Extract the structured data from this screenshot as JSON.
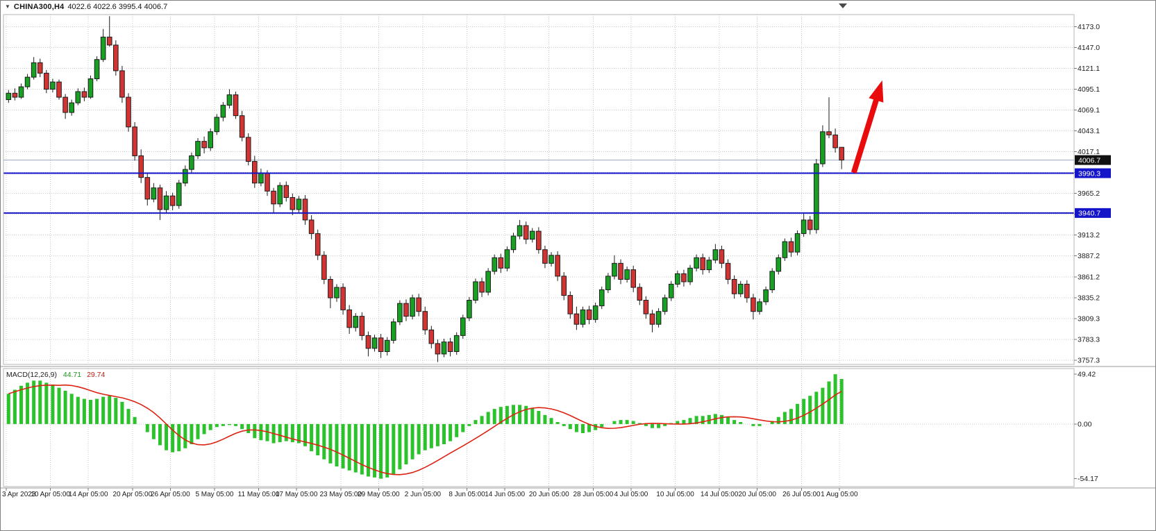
{
  "window": {
    "symbol_label": "CHINA300,H4",
    "ohlc_label": "4022.6 4022.6 3995.4 4006.7"
  },
  "colors": {
    "up": "#17a022",
    "down": "#d23434",
    "outline": "#1c1c1c",
    "grid": "#c9c9c9",
    "hline": "#1414c8",
    "bid_line": "#9aa7c7",
    "macd_hist": "#2cc22c",
    "macd_signal": "#dd2211",
    "arrow": "#e80c0c",
    "tag_current_bg": "#111111",
    "tag_hline_bg": "#1414c8",
    "axis_text": "#1a1a1a"
  },
  "chart_data": {
    "type": "candlestick",
    "symbol": "CHINA300",
    "timeframe": "H4",
    "title": "CHINA300,H4",
    "current_bar": {
      "open": 4022.6,
      "high": 4022.6,
      "low": 3995.4,
      "close": 4006.7
    },
    "current_price": {
      "value": 4006.7,
      "label": "4006.7"
    },
    "hlines": [
      {
        "value": 3990.3,
        "label": "3990.3"
      },
      {
        "value": 3940.7,
        "label": "3940.7"
      }
    ],
    "price_axis": {
      "tick_labels": [
        "4173.0",
        "4147.0",
        "4121.1",
        "4095.1",
        "4069.1",
        "4043.1",
        "4017.1",
        "3991.1",
        "3965.2",
        "3939.2",
        "3913.2",
        "3887.2",
        "3861.2",
        "3835.2",
        "3809.3",
        "3783.3",
        "3757.3"
      ]
    },
    "x_labels": [
      {
        "i": 0,
        "t": "3 Apr 2023"
      },
      {
        "i": 7,
        "t": "10 Apr 05:00"
      },
      {
        "i": 13,
        "t": "14 Apr 05:00"
      },
      {
        "i": 20,
        "t": "20 Apr 05:00"
      },
      {
        "i": 26,
        "t": "26 Apr 05:00"
      },
      {
        "i": 33,
        "t": "5 May 05:00"
      },
      {
        "i": 40,
        "t": "11 May 05:00"
      },
      {
        "i": 46,
        "t": "17 May 05:00"
      },
      {
        "i": 53,
        "t": "23 May 05:00"
      },
      {
        "i": 59,
        "t": "29 May 05:00"
      },
      {
        "i": 66,
        "t": "2 Jun 05:00"
      },
      {
        "i": 73,
        "t": "8 Jun 05:00"
      },
      {
        "i": 79,
        "t": "14 Jun 05:00"
      },
      {
        "i": 86,
        "t": "20 Jun 05:00"
      },
      {
        "i": 93,
        "t": "28 Jun 05:00"
      },
      {
        "i": 99,
        "t": "4 Jul 05:00"
      },
      {
        "i": 106,
        "t": "10 Jul 05:00"
      },
      {
        "i": 113,
        "t": "14 Jul 05:00"
      },
      {
        "i": 119,
        "t": "20 Jul 05:00"
      },
      {
        "i": 126,
        "t": "26 Jul 05:00"
      },
      {
        "i": 132,
        "t": "1 Aug 05:00"
      }
    ],
    "candles": [
      [
        4082,
        4094,
        4078,
        4090
      ],
      [
        4090,
        4096,
        4081,
        4085
      ],
      [
        4085,
        4102,
        4083,
        4098
      ],
      [
        4098,
        4114,
        4095,
        4110
      ],
      [
        4110,
        4135,
        4107,
        4128
      ],
      [
        4128,
        4133,
        4110,
        4115
      ],
      [
        4115,
        4119,
        4090,
        4095
      ],
      [
        4095,
        4108,
        4091,
        4104
      ],
      [
        4104,
        4107,
        4082,
        4085
      ],
      [
        4085,
        4089,
        4058,
        4066
      ],
      [
        4066,
        4082,
        4062,
        4078
      ],
      [
        4078,
        4096,
        4075,
        4092
      ],
      [
        4092,
        4097,
        4080,
        4085
      ],
      [
        4085,
        4112,
        4083,
        4108
      ],
      [
        4108,
        4136,
        4105,
        4132
      ],
      [
        4132,
        4170,
        4129,
        4160
      ],
      [
        4160,
        4186,
        4148,
        4150
      ],
      [
        4150,
        4156,
        4112,
        4118
      ],
      [
        4118,
        4124,
        4078,
        4085
      ],
      [
        4085,
        4090,
        4042,
        4048
      ],
      [
        4048,
        4054,
        4006,
        4012
      ],
      [
        4012,
        4020,
        3978,
        3985
      ],
      [
        3985,
        3990,
        3950,
        3958
      ],
      [
        3958,
        3978,
        3954,
        3972
      ],
      [
        3972,
        3976,
        3932,
        3945
      ],
      [
        3945,
        3968,
        3941,
        3962
      ],
      [
        3962,
        3966,
        3944,
        3950
      ],
      [
        3950,
        3982,
        3946,
        3978
      ],
      [
        3978,
        4000,
        3974,
        3995
      ],
      [
        3995,
        4016,
        3991,
        4012
      ],
      [
        4012,
        4034,
        4008,
        4030
      ],
      [
        4030,
        4036,
        4015,
        4022
      ],
      [
        4022,
        4046,
        4018,
        4042
      ],
      [
        4042,
        4064,
        4038,
        4060
      ],
      [
        4060,
        4079,
        4055,
        4075
      ],
      [
        4075,
        4095,
        4071,
        4088
      ],
      [
        4088,
        4092,
        4058,
        4062
      ],
      [
        4062,
        4068,
        4030,
        4035
      ],
      [
        4035,
        4040,
        4000,
        4005
      ],
      [
        4005,
        4012,
        3972,
        3978
      ],
      [
        3978,
        3996,
        3974,
        3990
      ],
      [
        3990,
        3994,
        3962,
        3968
      ],
      [
        3968,
        3972,
        3940,
        3952
      ],
      [
        3952,
        3979,
        3948,
        3975
      ],
      [
        3975,
        3980,
        3955,
        3960
      ],
      [
        3960,
        3965,
        3938,
        3945
      ],
      [
        3945,
        3962,
        3941,
        3958
      ],
      [
        3958,
        3963,
        3926,
        3932
      ],
      [
        3932,
        3938,
        3908,
        3915
      ],
      [
        3915,
        3920,
        3882,
        3888
      ],
      [
        3888,
        3893,
        3852,
        3858
      ],
      [
        3858,
        3862,
        3822,
        3835
      ],
      [
        3835,
        3852,
        3830,
        3848
      ],
      [
        3848,
        3853,
        3814,
        3820
      ],
      [
        3820,
        3826,
        3790,
        3798
      ],
      [
        3798,
        3816,
        3793,
        3812
      ],
      [
        3812,
        3817,
        3782,
        3788
      ],
      [
        3788,
        3793,
        3762,
        3772
      ],
      [
        3772,
        3789,
        3768,
        3785
      ],
      [
        3785,
        3790,
        3760,
        3768
      ],
      [
        3768,
        3786,
        3763,
        3782
      ],
      [
        3782,
        3809,
        3778,
        3805
      ],
      [
        3805,
        3832,
        3801,
        3828
      ],
      [
        3828,
        3833,
        3806,
        3812
      ],
      [
        3812,
        3839,
        3808,
        3835
      ],
      [
        3835,
        3840,
        3812,
        3818
      ],
      [
        3818,
        3824,
        3789,
        3795
      ],
      [
        3795,
        3800,
        3772,
        3778
      ],
      [
        3778,
        3783,
        3755,
        3765
      ],
      [
        3765,
        3784,
        3761,
        3780
      ],
      [
        3780,
        3785,
        3762,
        3768
      ],
      [
        3768,
        3792,
        3764,
        3788
      ],
      [
        3788,
        3814,
        3784,
        3810
      ],
      [
        3810,
        3836,
        3806,
        3832
      ],
      [
        3832,
        3859,
        3828,
        3855
      ],
      [
        3855,
        3860,
        3836,
        3842
      ],
      [
        3842,
        3872,
        3838,
        3868
      ],
      [
        3868,
        3889,
        3864,
        3885
      ],
      [
        3885,
        3890,
        3866,
        3872
      ],
      [
        3872,
        3899,
        3868,
        3895
      ],
      [
        3895,
        3916,
        3891,
        3912
      ],
      [
        3912,
        3932,
        3908,
        3925
      ],
      [
        3925,
        3930,
        3902,
        3908
      ],
      [
        3908,
        3922,
        3904,
        3918
      ],
      [
        3918,
        3923,
        3890,
        3895
      ],
      [
        3895,
        3900,
        3872,
        3878
      ],
      [
        3878,
        3892,
        3874,
        3888
      ],
      [
        3888,
        3893,
        3856,
        3862
      ],
      [
        3862,
        3867,
        3832,
        3838
      ],
      [
        3838,
        3843,
        3809,
        3815
      ],
      [
        3815,
        3824,
        3795,
        3802
      ],
      [
        3802,
        3824,
        3798,
        3820
      ],
      [
        3820,
        3825,
        3802,
        3808
      ],
      [
        3808,
        3829,
        3804,
        3825
      ],
      [
        3825,
        3849,
        3821,
        3845
      ],
      [
        3845,
        3866,
        3841,
        3862
      ],
      [
        3862,
        3888,
        3858,
        3878
      ],
      [
        3878,
        3883,
        3852,
        3858
      ],
      [
        3858,
        3874,
        3854,
        3870
      ],
      [
        3870,
        3875,
        3842,
        3848
      ],
      [
        3848,
        3853,
        3826,
        3832
      ],
      [
        3832,
        3837,
        3809,
        3815
      ],
      [
        3815,
        3820,
        3792,
        3802
      ],
      [
        3802,
        3822,
        3798,
        3818
      ],
      [
        3818,
        3839,
        3814,
        3835
      ],
      [
        3835,
        3856,
        3831,
        3852
      ],
      [
        3852,
        3869,
        3848,
        3865
      ],
      [
        3865,
        3870,
        3849,
        3855
      ],
      [
        3855,
        3876,
        3851,
        3872
      ],
      [
        3872,
        3889,
        3868,
        3885
      ],
      [
        3885,
        3890,
        3864,
        3870
      ],
      [
        3870,
        3886,
        3866,
        3882
      ],
      [
        3882,
        3902,
        3878,
        3895
      ],
      [
        3895,
        3900,
        3872,
        3878
      ],
      [
        3878,
        3883,
        3852,
        3858
      ],
      [
        3858,
        3863,
        3834,
        3840
      ],
      [
        3840,
        3856,
        3836,
        3852
      ],
      [
        3852,
        3857,
        3829,
        3835
      ],
      [
        3835,
        3840,
        3808,
        3818
      ],
      [
        3818,
        3834,
        3814,
        3830
      ],
      [
        3830,
        3849,
        3826,
        3845
      ],
      [
        3845,
        3872,
        3841,
        3868
      ],
      [
        3868,
        3889,
        3864,
        3885
      ],
      [
        3885,
        3909,
        3881,
        3905
      ],
      [
        3905,
        3910,
        3886,
        3892
      ],
      [
        3892,
        3919,
        3888,
        3915
      ],
      [
        3915,
        3940,
        3911,
        3932
      ],
      [
        3932,
        3937,
        3914,
        3920
      ],
      [
        3920,
        4008,
        3915,
        4002
      ],
      [
        4002,
        4050,
        3998,
        4042
      ],
      [
        4042,
        4085,
        4034,
        4038
      ],
      [
        4038,
        4046,
        4016,
        4022
      ],
      [
        4022.6,
        4022.6,
        3995.4,
        4006.7
      ]
    ],
    "macd": {
      "label": "MACD(12,26,9)",
      "value_main": "44.71",
      "value_signal": "29.74",
      "ticks": [
        "49.42",
        "0.00",
        "-54.17"
      ],
      "hist": [
        30,
        34,
        38,
        41,
        43,
        43,
        41,
        39,
        36,
        33,
        30,
        27,
        25,
        24,
        25,
        27,
        28,
        26,
        22,
        15,
        7,
        0,
        -8,
        -15,
        -21,
        -26,
        -28,
        -27,
        -24,
        -20,
        -15,
        -10,
        -6,
        -3,
        -2,
        -1,
        -2,
        -5,
        -9,
        -14,
        -16,
        -17,
        -19,
        -18,
        -17,
        -18,
        -19,
        -22,
        -27,
        -31,
        -35,
        -39,
        -42,
        -44,
        -46,
        -48,
        -50,
        -52,
        -53,
        -54.17,
        -53,
        -50,
        -45,
        -40,
        -35,
        -30,
        -26,
        -24,
        -22,
        -20,
        -17,
        -13,
        -8,
        -2,
        4,
        8,
        12,
        15,
        17,
        18,
        19,
        19,
        18,
        16,
        13,
        9,
        6,
        2,
        -2,
        -5,
        -8,
        -9,
        -8,
        -6,
        -3,
        0,
        3,
        4,
        4,
        3,
        1,
        -2,
        -4,
        -4,
        -2,
        1,
        3,
        4,
        6,
        8,
        8,
        9,
        10,
        9,
        7,
        4,
        2,
        0,
        -2,
        -2,
        0,
        3,
        7,
        12,
        15,
        20,
        25,
        28,
        32,
        36,
        42.3,
        49.42,
        44.71
      ]
    },
    "annotations": [
      {
        "type": "arrow",
        "x1_index": 134.3,
        "y1_price": 3991,
        "x2_index": 138.8,
        "y2_price": 4106
      }
    ]
  }
}
